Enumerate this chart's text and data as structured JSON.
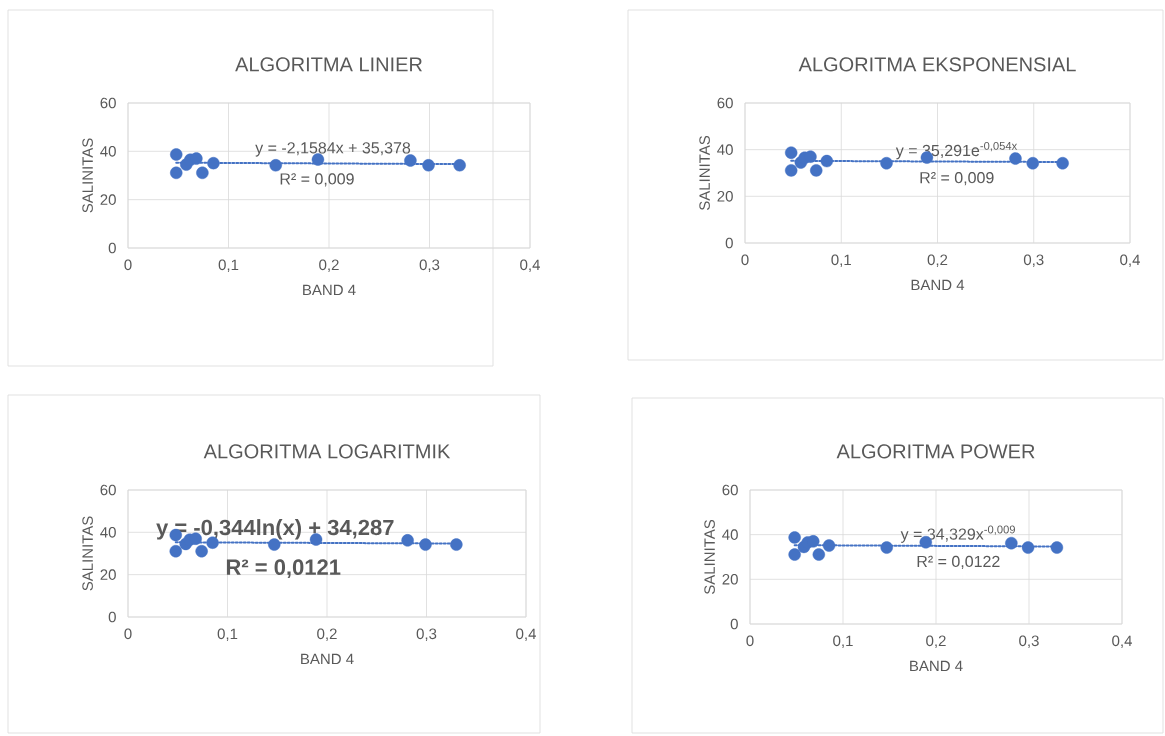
{
  "chart_data": [
    {
      "type": "scatter",
      "title": "ALGORITMA LINIER",
      "xlabel": "BAND 4",
      "ylabel": "SALINITAS",
      "xlim": [
        0,
        0.4
      ],
      "ylim": [
        0,
        60
      ],
      "xticks": [
        0,
        {
          "value": 0.1,
          "label": "0,1"
        },
        {
          "value": 0.2,
          "label": "0,2"
        },
        {
          "value": 0.3,
          "label": "0,3"
        },
        {
          "value": 0.4,
          "label": "0,4"
        }
      ],
      "yticks": [
        0,
        20,
        40,
        60
      ],
      "grid": true,
      "legend": false,
      "series": [
        {
          "type": "scatter",
          "marker": "circle",
          "color": "#4472c4",
          "x": [
            0.048,
            0.048,
            0.058,
            0.062,
            0.068,
            0.074,
            0.085,
            0.147,
            0.189,
            0.281,
            0.299,
            0.33
          ],
          "values": [
            38.7,
            31.1,
            34.5,
            36.5,
            37,
            31.1,
            35.1,
            34.2,
            36.6,
            36.2,
            34.2,
            34.2
          ]
        },
        {
          "type": "line",
          "color": "#4472c4",
          "line_style": "dotted",
          "marker": "none",
          "x": [
            0.048,
            0.33
          ],
          "values": [
            35.3,
            34.7
          ]
        }
      ],
      "annotations": [
        "y = -2,1584x + 35,378",
        "R² = 0,009"
      ]
    },
    {
      "type": "scatter",
      "title": "ALGORITMA EKSPONENSIAL",
      "xlabel": "BAND 4",
      "ylabel": "SALINITAS",
      "xlim": [
        0,
        0.4
      ],
      "ylim": [
        0,
        60
      ],
      "xticks": [
        0,
        {
          "value": 0.1,
          "label": "0,1"
        },
        {
          "value": 0.2,
          "label": "0,2"
        },
        {
          "value": 0.3,
          "label": "0,3"
        },
        {
          "value": 0.4,
          "label": "0,4"
        }
      ],
      "yticks": [
        0,
        20,
        40,
        60
      ],
      "grid": true,
      "legend": false,
      "series": [
        {
          "type": "scatter",
          "marker": "circle",
          "color": "#4472c4",
          "x": [
            0.048,
            0.048,
            0.058,
            0.062,
            0.068,
            0.074,
            0.085,
            0.147,
            0.189,
            0.281,
            0.299,
            0.33
          ],
          "values": [
            38.7,
            31.1,
            34.5,
            36.5,
            37,
            31.1,
            35.1,
            34.2,
            36.6,
            36.2,
            34.2,
            34.2
          ]
        },
        {
          "type": "line",
          "color": "#4472c4",
          "line_style": "dotted",
          "marker": "none",
          "x": [
            0.048,
            0.33
          ],
          "values": [
            35.2,
            34.7
          ]
        }
      ],
      "annotations": [
        "y = 35,291e$^{-0,054x}$",
        "R² = 0,009"
      ]
    },
    {
      "type": "scatter",
      "title": "ALGORITMA LOGARITMIK",
      "xlabel": "BAND 4",
      "ylabel": "SALINITAS",
      "xlim": [
        0,
        0.4
      ],
      "ylim": [
        0,
        60
      ],
      "xticks": [
        0,
        {
          "value": 0.1,
          "label": "0,1"
        },
        {
          "value": 0.2,
          "label": "0,2"
        },
        {
          "value": 0.3,
          "label": "0,3"
        },
        {
          "value": 0.4,
          "label": "0,4"
        }
      ],
      "yticks": [
        0,
        20,
        40,
        60
      ],
      "grid": true,
      "legend": false,
      "series": [
        {
          "type": "scatter",
          "marker": "circle",
          "color": "#4472c4",
          "x": [
            0.048,
            0.048,
            0.058,
            0.062,
            0.068,
            0.074,
            0.085,
            0.147,
            0.189,
            0.281,
            0.299,
            0.33
          ],
          "values": [
            38.7,
            31.1,
            34.5,
            36.5,
            37,
            31.1,
            35.1,
            34.2,
            36.6,
            36.2,
            34.2,
            34.2
          ]
        },
        {
          "type": "line",
          "color": "#4472c4",
          "line_style": "dotted",
          "marker": "none",
          "x": [
            0.048,
            0.33
          ],
          "values": [
            35.3,
            34.7
          ]
        }
      ],
      "annotations": [
        "y = -0,344ln(x) + 34,287",
        "R² = 0,0121"
      ]
    },
    {
      "type": "scatter",
      "title": "ALGORITMA POWER",
      "xlabel": "BAND 4",
      "ylabel": "SALINITAS",
      "xlim": [
        0,
        0.4
      ],
      "ylim": [
        0,
        60
      ],
      "xticks": [
        0,
        {
          "value": 0.1,
          "label": "0,1"
        },
        {
          "value": 0.2,
          "label": "0,2"
        },
        {
          "value": 0.3,
          "label": "0,3"
        },
        {
          "value": 0.4,
          "label": "0,4"
        }
      ],
      "yticks": [
        0,
        20,
        40,
        60
      ],
      "grid": true,
      "legend": false,
      "series": [
        {
          "type": "scatter",
          "marker": "circle",
          "color": "#4472c4",
          "x": [
            0.048,
            0.048,
            0.058,
            0.062,
            0.068,
            0.074,
            0.085,
            0.147,
            0.189,
            0.281,
            0.299,
            0.33
          ],
          "values": [
            38.7,
            31.1,
            34.5,
            36.5,
            37,
            31.1,
            35.1,
            34.2,
            36.6,
            36.2,
            34.2,
            34.2
          ]
        },
        {
          "type": "line",
          "color": "#4472c4",
          "line_style": "dotted",
          "marker": "none",
          "x": [
            0.048,
            0.33
          ],
          "values": [
            35.3,
            34.7
          ]
        }
      ],
      "annotations": [
        "y = 34,329x$^{-0,009}$",
        "R² = 0,0122"
      ]
    }
  ]
}
